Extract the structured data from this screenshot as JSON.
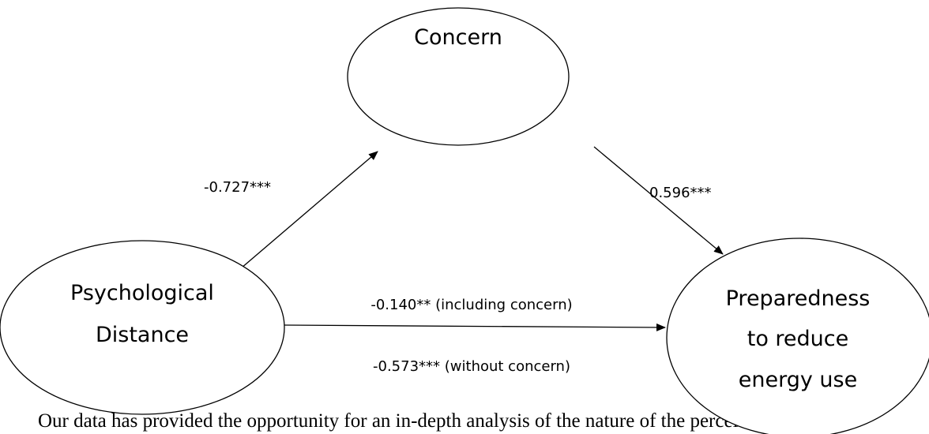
{
  "nodes": [
    {
      "lines": [
        "Concern"
      ]
    },
    {
      "lines": [
        "Psychological",
        "Distance"
      ]
    },
    {
      "lines": [
        "Preparedness",
        "to reduce",
        "energy use"
      ]
    }
  ],
  "edges": [
    {
      "label": "-0.727***"
    },
    {
      "label": "0.596***"
    },
    {
      "label": "-0.140** (including concern)"
    },
    {
      "label": "-0.573*** (without concern)"
    }
  ],
  "paragraph": "Our data has provided the opportunity for an in-depth analysis of the nature of the perceiv"
}
